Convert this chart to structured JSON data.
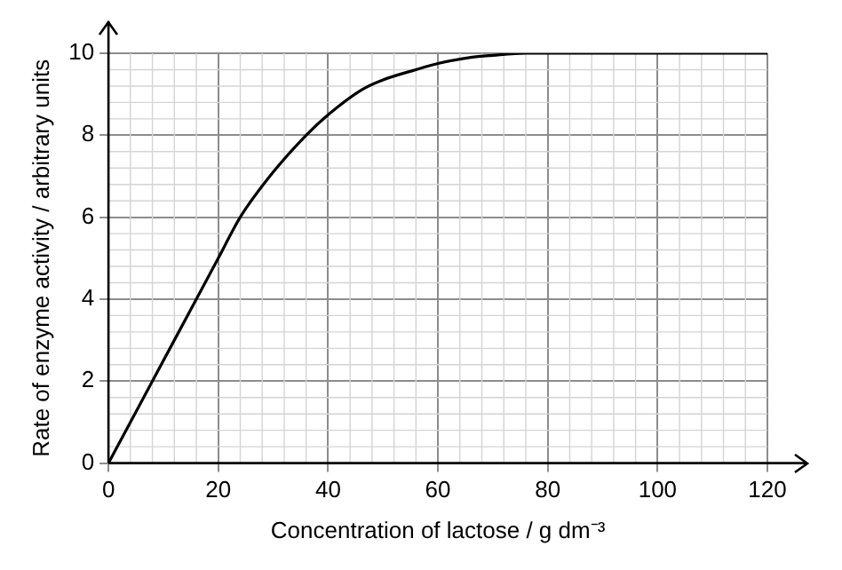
{
  "chart_data": {
    "type": "line",
    "xlabel": "Concentration of lactose / g dm⁻³",
    "ylabel": "Rate of enzyme activity / arbitrary units",
    "x": [
      0,
      8,
      16,
      20,
      24,
      30,
      36,
      40,
      46,
      50,
      56,
      60,
      66,
      70,
      76,
      80,
      100,
      120
    ],
    "series": [
      {
        "color": "#000000",
        "values": [
          0,
          2,
          4,
          5,
          6,
          7.1,
          8,
          8.5,
          9.1,
          9.35,
          9.6,
          9.75,
          9.9,
          9.95,
          10,
          10,
          10,
          10
        ]
      }
    ],
    "xlim": [
      0,
      120
    ],
    "xticks": [
      0,
      20,
      40,
      60,
      80,
      100,
      120
    ],
    "ylim": [
      0,
      10
    ],
    "yticks": [
      0,
      2,
      4,
      6,
      8,
      10
    ],
    "grid": true,
    "legend": false,
    "marker": "none",
    "line_style": "solid"
  }
}
